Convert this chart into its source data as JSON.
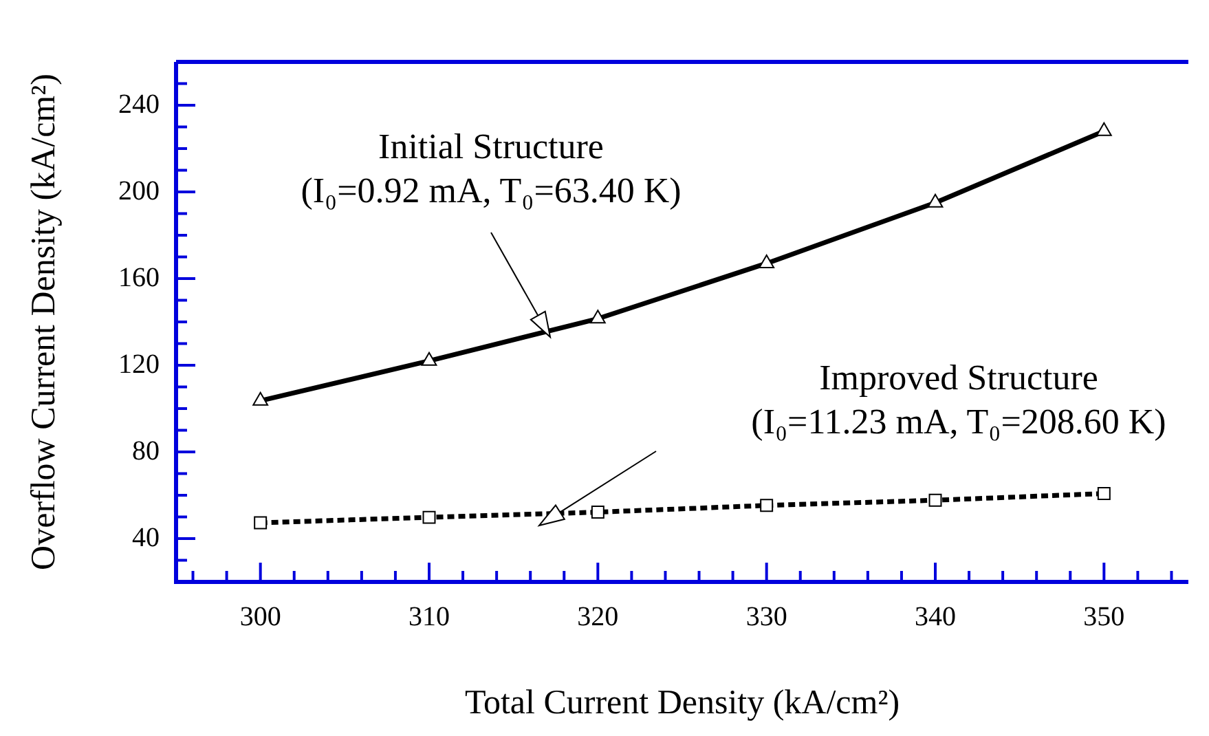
{
  "chart_data": {
    "type": "line",
    "xlabel": "Total Current Density (kA/cm²)",
    "ylabel": "Overflow Current Density (kA/cm²)",
    "x": [
      300,
      310,
      320,
      330,
      340,
      350
    ],
    "series": [
      {
        "color": "#000000",
        "marker": "triangle",
        "line_style": "solid",
        "values": [
          103.6,
          122,
          141.5,
          167,
          195,
          228
        ]
      },
      {
        "color": "#000000",
        "marker": "square",
        "line_style": "dashed",
        "values": [
          47.3,
          49.8,
          52.2,
          55.3,
          57.7,
          60.8
        ]
      }
    ],
    "xlim": [
      295,
      355
    ],
    "xticks": [
      {
        "value": 296,
        "label": null
      },
      {
        "value": 298,
        "label": null
      },
      300,
      {
        "value": 302,
        "label": null
      },
      {
        "value": 304,
        "label": null
      },
      {
        "value": 306,
        "label": null
      },
      {
        "value": 308,
        "label": null
      },
      310,
      {
        "value": 312,
        "label": null
      },
      {
        "value": 314,
        "label": null
      },
      {
        "value": 316,
        "label": null
      },
      {
        "value": 318,
        "label": null
      },
      320,
      {
        "value": 322,
        "label": null
      },
      {
        "value": 324,
        "label": null
      },
      {
        "value": 326,
        "label": null
      },
      {
        "value": 328,
        "label": null
      },
      330,
      {
        "value": 332,
        "label": null
      },
      {
        "value": 334,
        "label": null
      },
      {
        "value": 336,
        "label": null
      },
      {
        "value": 338,
        "label": null
      },
      340,
      {
        "value": 342,
        "label": null
      },
      {
        "value": 344,
        "label": null
      },
      {
        "value": 346,
        "label": null
      },
      {
        "value": 348,
        "label": null
      },
      350,
      {
        "value": 352,
        "label": null
      },
      {
        "value": 354,
        "label": null
      }
    ],
    "ylim": [
      20,
      260
    ],
    "yticks": [
      {
        "value": 30,
        "label": null
      },
      40,
      {
        "value": 50,
        "label": null
      },
      {
        "value": 60,
        "label": null
      },
      {
        "value": 70,
        "label": null
      },
      80,
      {
        "value": 90,
        "label": null
      },
      {
        "value": 100,
        "label": null
      },
      {
        "value": 110,
        "label": null
      },
      120,
      {
        "value": 130,
        "label": null
      },
      {
        "value": 140,
        "label": null
      },
      {
        "value": 150,
        "label": null
      },
      160,
      {
        "value": 170,
        "label": null
      },
      {
        "value": 180,
        "label": null
      },
      {
        "value": 190,
        "label": null
      },
      200,
      {
        "value": 210,
        "label": null
      },
      {
        "value": 220,
        "label": null
      },
      {
        "value": 230,
        "label": null
      },
      240,
      {
        "value": 250,
        "label": null
      }
    ],
    "grid": false,
    "legend": false,
    "annotations": [
      "Initial Structure\n(I₀=0.92 mA, T₀=63.40 K)",
      "Improved Structure\n(I₀=11.23 mA, T₀=208.60 K)"
    ]
  }
}
